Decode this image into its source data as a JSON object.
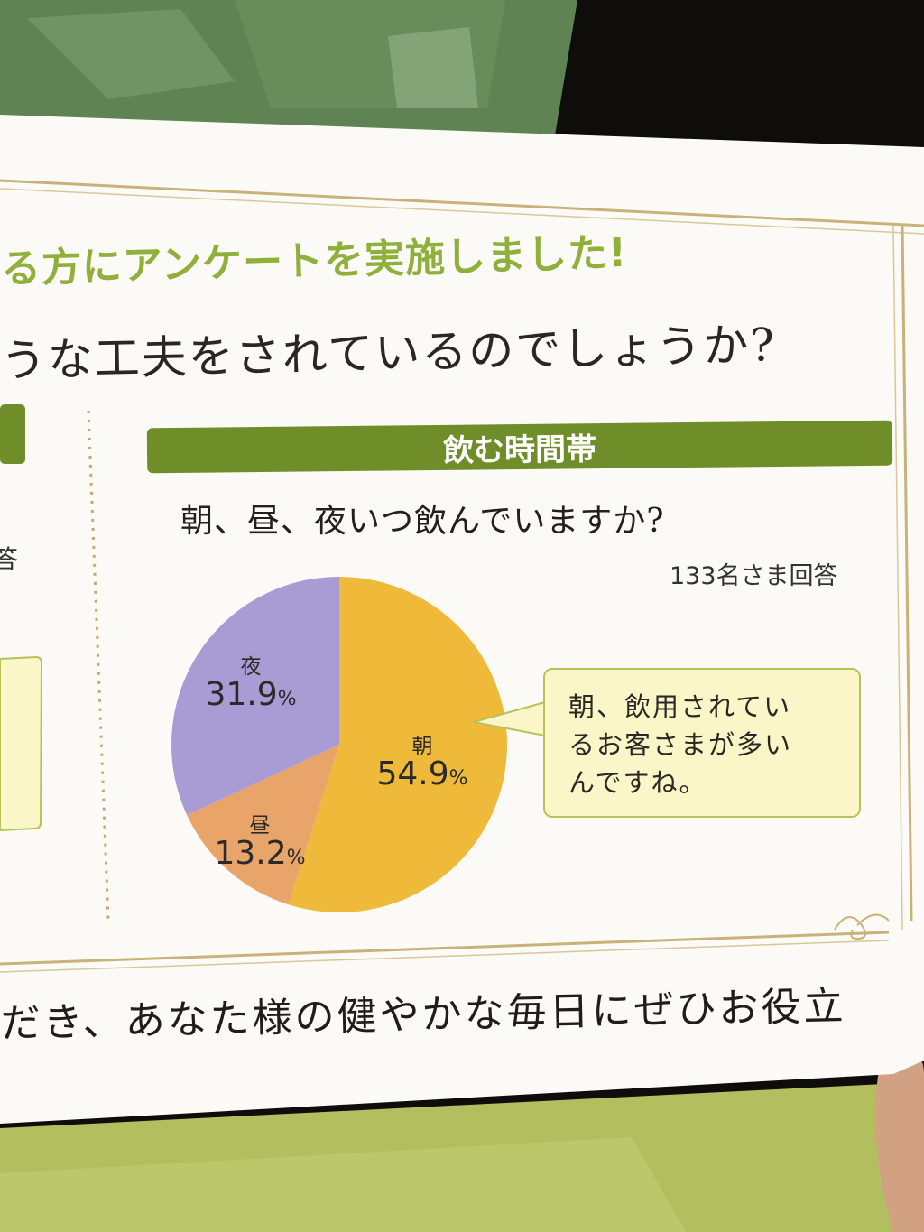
{
  "survey": {
    "headline": "る方にアンケートを実施しました!",
    "subheadline": "うな工夫をされているのでしょうか?",
    "left_panel_respondents": "答"
  },
  "section": {
    "title": "飲む時間帯",
    "question": "朝、昼、夜いつ飲んでいますか?",
    "respondents": "133名さま回答",
    "callout": [
      "朝、飲用されてい",
      "るお客さまが多い",
      "んですね。"
    ]
  },
  "footer": {
    "text": "だき、あなた様の健やかな毎日にぜひお役立"
  },
  "chart_data": {
    "type": "pie",
    "slices": [
      {
        "name": "朝",
        "value": 54.9,
        "label": "54.9",
        "unit": "%",
        "color": "#efb93a"
      },
      {
        "name": "昼",
        "value": 13.2,
        "label": "13.2",
        "unit": "%",
        "color": "#e9a46a"
      },
      {
        "name": "夜",
        "value": 31.9,
        "label": "31.9",
        "unit": "%",
        "color": "#a99bd3"
      }
    ]
  },
  "colors": {
    "banner": "#6f8e2a",
    "headline_green": "#8fb03a",
    "callout_bg": "#fbf6c8",
    "card": "#fbfaf6",
    "frame_gold": "#c9b27a"
  }
}
